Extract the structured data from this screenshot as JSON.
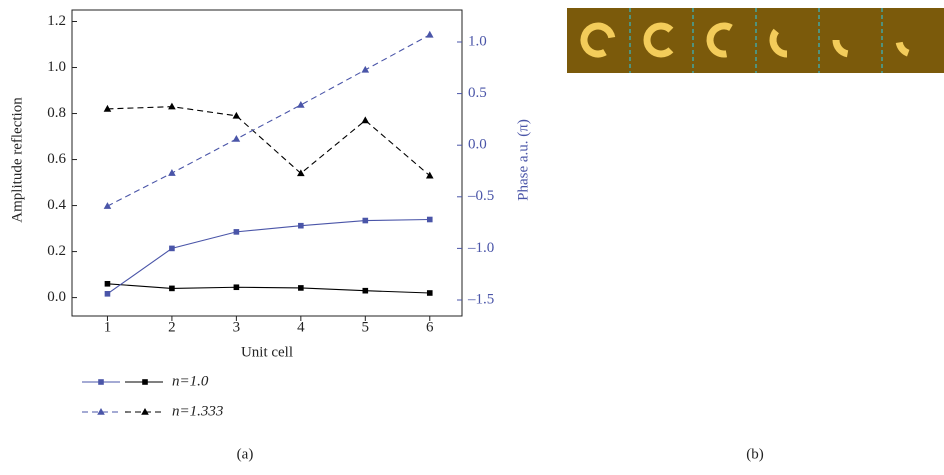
{
  "chart_data": {
    "type": "line",
    "xlabel": "Unit cell",
    "ylabel": "Amplitude reflection",
    "y2label": "Phase a.u. (π)",
    "xlim": [
      0.45,
      6.5
    ],
    "xticks": [
      1,
      2,
      3,
      4,
      5,
      6
    ],
    "ylim": [
      -0.08,
      1.25
    ],
    "yticks": [
      {
        "value": 0,
        "label": "0.0"
      },
      {
        "value": 0.2,
        "label": "0.2"
      },
      {
        "value": 0.4,
        "label": "0.4"
      },
      {
        "value": 0.6,
        "label": "0.6"
      },
      {
        "value": 0.8,
        "label": "0.8"
      },
      {
        "value": 1,
        "label": "1.0"
      },
      {
        "value": 1.2,
        "label": "1.2"
      }
    ],
    "y2lim": [
      -1.655,
      1.31
    ],
    "y2ticks": [
      {
        "value": -1.5,
        "label": "–1.5"
      },
      {
        "value": -1,
        "label": "–1.0"
      },
      {
        "value": -0.5,
        "label": "–0.5"
      },
      {
        "value": 0,
        "label": "0.0"
      },
      {
        "value": 0.5,
        "label": "0.5"
      },
      {
        "value": 1,
        "label": "1.0"
      }
    ],
    "x": [
      1,
      2,
      3,
      4,
      5,
      6
    ],
    "series": [
      {
        "name": "n=1.0",
        "marker": "square",
        "dashed": false,
        "amplitude": {
          "color": "#000000",
          "values": [
            0.06,
            0.04,
            0.045,
            0.042,
            0.03,
            0.02
          ]
        },
        "phase": {
          "color": "#4a55a8",
          "axis": "y2",
          "values": [
            -1.44,
            -1.0,
            -0.84,
            -0.78,
            -0.73,
            -0.72
          ]
        }
      },
      {
        "name": "n=1.333",
        "marker": "triangle",
        "dashed": true,
        "amplitude": {
          "color": "#000000",
          "values": [
            0.82,
            0.83,
            0.79,
            0.54,
            0.77,
            0.53
          ]
        },
        "phase": {
          "color": "#4a55a8",
          "axis": "y2",
          "values": [
            -0.59,
            -0.27,
            0.06,
            0.39,
            0.73,
            1.07
          ]
        }
      }
    ],
    "panel_labels": [
      "(a)",
      "(b)"
    ]
  }
}
